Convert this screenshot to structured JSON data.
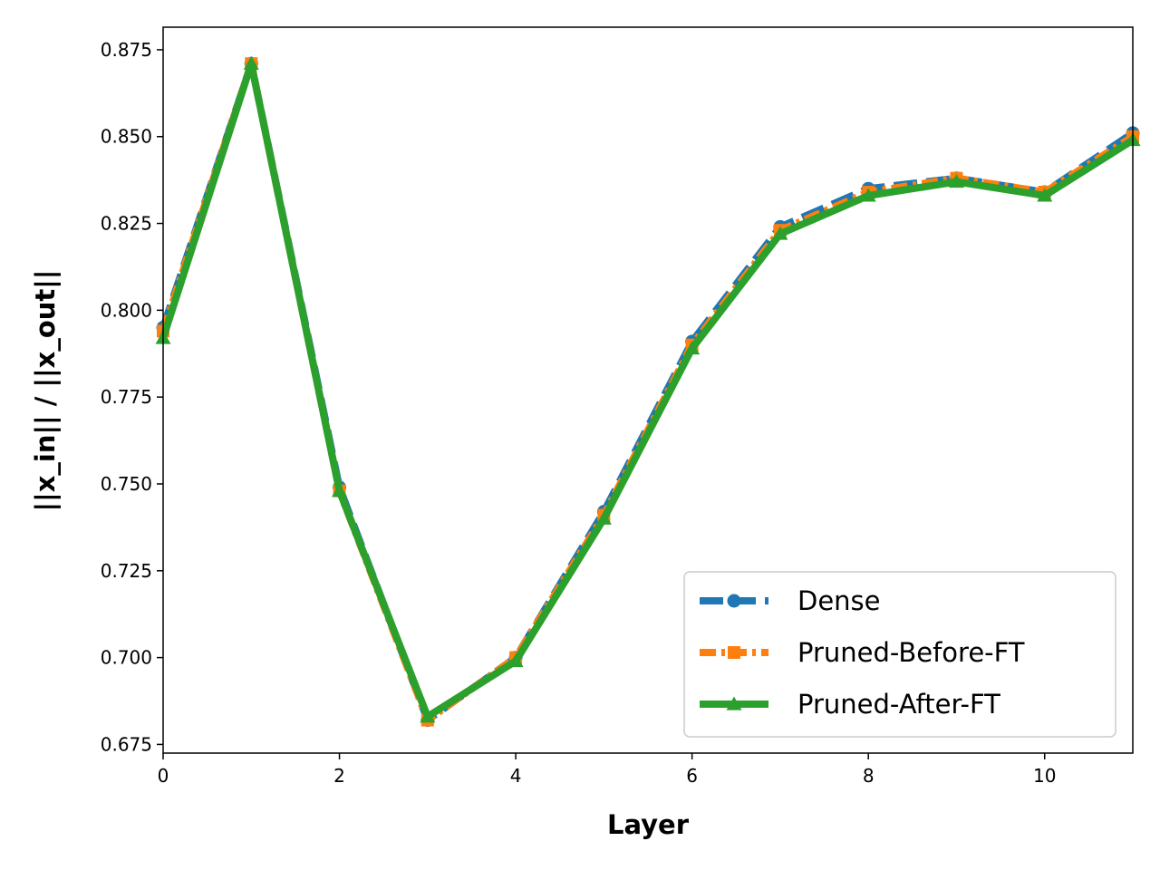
{
  "chart_data": {
    "type": "line",
    "xlabel": "Layer",
    "ylabel": "||x_in|| / ||x_out||",
    "xlim": [
      0,
      11
    ],
    "ylim": [
      0.6725,
      0.8815
    ],
    "x_ticks": [
      0,
      2,
      4,
      6,
      8,
      10
    ],
    "y_ticks": [
      0.675,
      0.7,
      0.725,
      0.75,
      0.775,
      0.8,
      0.825,
      0.85,
      0.875
    ],
    "x_tick_labels": [
      "0",
      "2",
      "4",
      "6",
      "8",
      "10"
    ],
    "y_tick_labels": [
      "0.675",
      "0.700",
      "0.725",
      "0.750",
      "0.775",
      "0.800",
      "0.825",
      "0.850",
      "0.875"
    ],
    "grid": false,
    "legend_position": "bottom-right",
    "x": [
      0,
      1,
      2,
      3,
      4,
      5,
      6,
      7,
      8,
      9,
      10,
      11
    ],
    "series": [
      {
        "name": "Dense",
        "color": "#1f77b4",
        "line_style": "dashed",
        "marker": "circle",
        "values": [
          0.795,
          0.871,
          0.749,
          0.682,
          0.7,
          0.742,
          0.791,
          0.824,
          0.835,
          0.838,
          0.834,
          0.851
        ]
      },
      {
        "name": "Pruned-Before-FT",
        "color": "#ff7f0e",
        "line_style": "dash-dot",
        "marker": "square",
        "values": [
          0.794,
          0.871,
          0.748,
          0.682,
          0.7,
          0.741,
          0.79,
          0.823,
          0.834,
          0.838,
          0.834,
          0.85
        ]
      },
      {
        "name": "Pruned-After-FT",
        "color": "#2ca02c",
        "line_style": "solid",
        "marker": "triangle",
        "values": [
          0.792,
          0.871,
          0.748,
          0.683,
          0.699,
          0.74,
          0.789,
          0.822,
          0.833,
          0.837,
          0.833,
          0.849
        ]
      }
    ]
  }
}
